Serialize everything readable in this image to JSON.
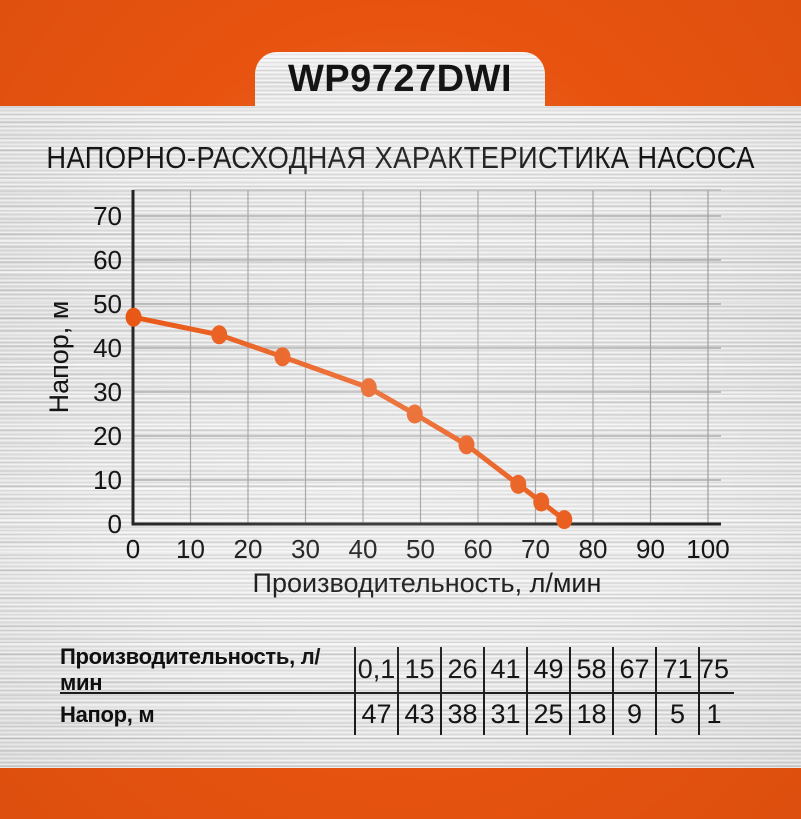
{
  "app": {
    "model": "WP9727DWI"
  },
  "main": {
    "title": "НАПОРНО-РАСХОДНАЯ ХАРАКТЕРИСТИКА НАСОСА"
  },
  "colors": {
    "accent_orange": "#E8530F",
    "grid_line": "#9F9F9F",
    "plot_border": "#B5B5B5",
    "axis_dark": "#232323",
    "text_dark": "#141414",
    "table_line": "#1D1D1D"
  },
  "chart_data": {
    "type": "line",
    "title": "",
    "xlabel": "Производительность, л/мин",
    "ylabel": "Напор, м",
    "x": [
      0.1,
      15,
      26,
      41,
      49,
      58,
      67,
      71,
      75
    ],
    "y": [
      47,
      43,
      38,
      31,
      25,
      18,
      9,
      5,
      1
    ],
    "xlim": [
      0,
      100
    ],
    "ylim": [
      0,
      70
    ],
    "xticks": [
      0,
      10,
      20,
      30,
      40,
      50,
      60,
      70,
      80,
      90,
      100
    ],
    "yticks": [
      0,
      10,
      20,
      30,
      40,
      50,
      60,
      70
    ],
    "grid": "on",
    "legend": "none",
    "series": [
      {
        "name": "Напорно-расходная характеристика",
        "color": "#E8530F"
      }
    ]
  },
  "table": {
    "rows": [
      {
        "label": "Производительность, л/мин",
        "values": [
          "0,1",
          "15",
          "26",
          "41",
          "49",
          "58",
          "67",
          "71",
          "75"
        ]
      },
      {
        "label": "Напор, м",
        "values": [
          "47",
          "43",
          "38",
          "31",
          "25",
          "18",
          "9",
          "5",
          "1"
        ]
      }
    ]
  }
}
